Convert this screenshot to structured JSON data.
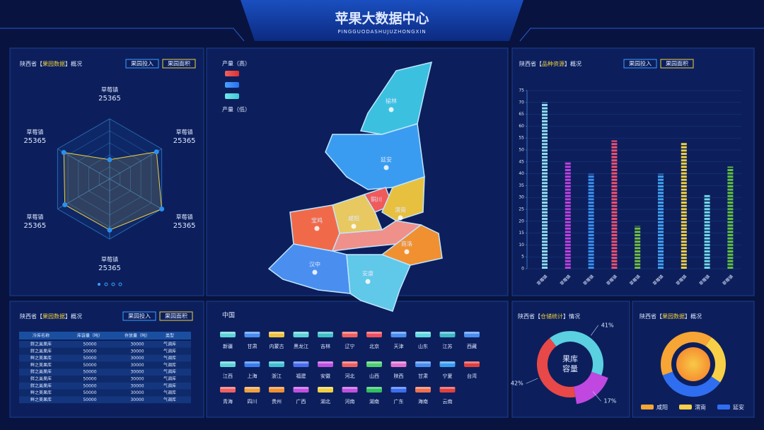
{
  "header": {
    "title": "苹果大数据中心",
    "subtitle": "PINGGUODASHUJUZHONGXIN"
  },
  "map": {
    "legend_high": "产量（高）",
    "legend_low": "产量（低）",
    "regions": [
      "榆林",
      "延安",
      "铜川",
      "渭南",
      "咸阳",
      "宝鸡",
      "商洛",
      "汉中",
      "安康"
    ]
  },
  "table": {
    "title": "陕西省【果园数据】概况",
    "buttons": [
      "果园投入",
      "果园面积"
    ],
    "columns": [
      "冷库名称",
      "库容量（吨）",
      "存放量（吨）",
      "类型"
    ],
    "rows": [
      [
        "鲜之美果库",
        "50000",
        "30000",
        "气调库"
      ],
      [
        "鲜之美果库",
        "50000",
        "30000",
        "气调库"
      ],
      [
        "鲜之美果库",
        "50000",
        "30000",
        "气调库"
      ],
      [
        "鲜之美果库",
        "50000",
        "30000",
        "气调库"
      ],
      [
        "鲜之美果库",
        "50000",
        "30000",
        "气调库"
      ],
      [
        "鲜之美果库",
        "50000",
        "30000",
        "气调库"
      ],
      [
        "鲜之美果库",
        "50000",
        "30000",
        "气调库"
      ],
      [
        "鲜之美果库",
        "50000",
        "30000",
        "气调库"
      ],
      [
        "鲜之美果库",
        "50000",
        "30000",
        "气调库"
      ]
    ]
  },
  "provinces": {
    "title": "中国",
    "items": [
      {
        "name": "新疆",
        "color": "#5fd3d8"
      },
      {
        "name": "甘肃",
        "color": "#4a8ef0"
      },
      {
        "name": "内蒙古",
        "color": "#f0c040"
      },
      {
        "name": "黑龙江",
        "color": "#5fd3d8"
      },
      {
        "name": "吉林",
        "color": "#40c0c8"
      },
      {
        "name": "辽宁",
        "color": "#f06060"
      },
      {
        "name": "北京",
        "color": "#f05060"
      },
      {
        "name": "天津",
        "color": "#4a8ef0"
      },
      {
        "name": "山东",
        "color": "#5fd8e0"
      },
      {
        "name": "江苏",
        "color": "#40b8c8"
      },
      {
        "name": "西藏",
        "color": "#4a8ef0"
      },
      {
        "name": "江西",
        "color": "#5fd3d8"
      },
      {
        "name": "上海",
        "color": "#3a7ef0"
      },
      {
        "name": "浙江",
        "color": "#40c0d0"
      },
      {
        "name": "福建",
        "color": "#4a6ef0"
      },
      {
        "name": "安徽",
        "color": "#c050e0"
      },
      {
        "name": "河北",
        "color": "#f06060"
      },
      {
        "name": "山西",
        "color": "#50d070"
      },
      {
        "name": "陕西",
        "color": "#e070d0"
      },
      {
        "name": "甘肃",
        "color": "#4a8ef0"
      },
      {
        "name": "宁夏",
        "color": "#3a9ef0"
      },
      {
        "name": "台湾",
        "color": "#e04040"
      },
      {
        "name": "青海",
        "color": "#f06060"
      },
      {
        "name": "四川",
        "color": "#f0a040"
      },
      {
        "name": "贵州",
        "color": "#f09030"
      },
      {
        "name": "广西",
        "color": "#c050e0"
      },
      {
        "name": "湖北",
        "color": "#f0d040"
      },
      {
        "name": "河南",
        "color": "#c050e0"
      },
      {
        "name": "湖南",
        "color": "#30c060"
      },
      {
        "name": "广东",
        "color": "#3a6ef0"
      },
      {
        "name": "海南",
        "color": "#f07050"
      },
      {
        "name": "云南",
        "color": "#e04040"
      }
    ]
  },
  "chart_data": [
    {
      "type": "radar",
      "title": "陕西省【果园数据】概况",
      "buttons": [
        "果园投入",
        "果园面积"
      ],
      "categories": [
        "草莓镇",
        "草莓镇",
        "草莓镇",
        "草莓镇",
        "草莓镇",
        "草莓镇"
      ],
      "category_values": [
        25365,
        25365,
        25365,
        25365,
        25365,
        25365
      ],
      "values": [
        32,
        90,
        100,
        85,
        86,
        88
      ],
      "rlim": [
        0,
        100
      ],
      "color": "#f0d040"
    },
    {
      "type": "bar",
      "title": "陕西省【品种资源】概况",
      "buttons": [
        "果园投入",
        "果园面积"
      ],
      "categories": [
        "草莓镇",
        "草莓镇",
        "草莓镇",
        "草莓镇",
        "草莓镇",
        "草莓镇",
        "草莓镇",
        "草莓镇",
        "草莓镇"
      ],
      "values": [
        70,
        45,
        40,
        54,
        18,
        40,
        53,
        31,
        43
      ],
      "colors": [
        "#8fdcf0",
        "#c040e0",
        "#3a90f0",
        "#f05070",
        "#70c040",
        "#40a0f0",
        "#f0d040",
        "#70d8e8",
        "#60c040"
      ],
      "ylim": [
        0,
        75
      ],
      "yticks": [
        0,
        5,
        10,
        15,
        20,
        25,
        30,
        35,
        40,
        45,
        50,
        55,
        60,
        65,
        70,
        75
      ],
      "grid": true
    },
    {
      "type": "pie",
      "title": "陕西省【仓储统计】情况",
      "center_label": [
        "果库",
        "容量"
      ],
      "values": [
        41,
        17,
        42
      ],
      "value_labels": [
        "41%",
        "17%",
        "42%"
      ],
      "colors": [
        "#5ad0e0",
        "#c048e0",
        "#e84848"
      ]
    },
    {
      "type": "ring",
      "title": "陕西省【果园数据】概况",
      "categories": [
        "咸阳",
        "渭南",
        "延安"
      ],
      "values": [
        40,
        25,
        35
      ],
      "colors": [
        "#f7a534",
        "#f7d048",
        "#2f6ef0"
      ]
    }
  ]
}
